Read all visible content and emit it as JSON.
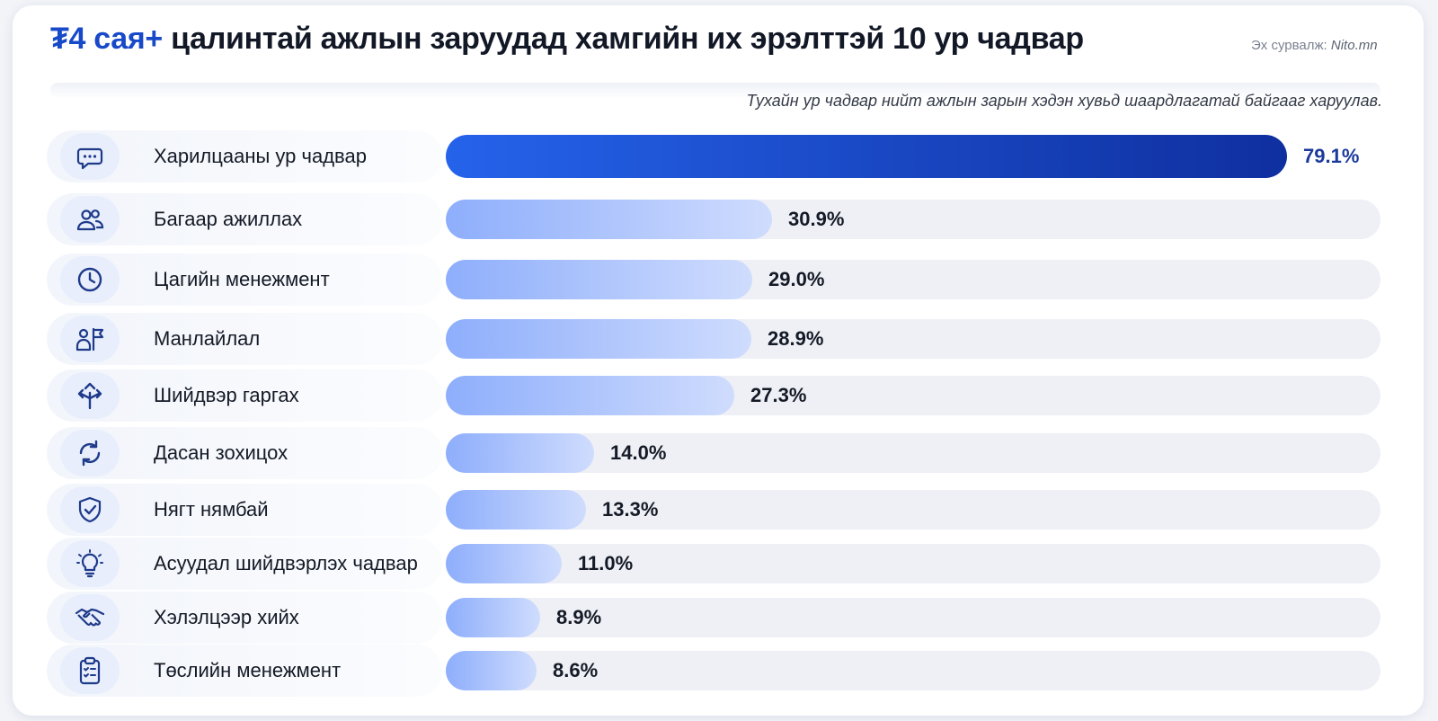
{
  "header": {
    "title_highlight": "₮4 сая+",
    "title_rest": " цалинтай ажлын заруудад хамгийн их эрэлттэй 10 ур чадвар",
    "source_label": "Эх сурвалж: ",
    "source_name": "Nito.mn",
    "subtitle": "Тухайн ур чадвар нийт ажлын зарын хэдэн хувьд шаардлагатай байгааг харуулав."
  },
  "colors": {
    "accent": "#1749c9",
    "top_bar_start": "#2563eb",
    "top_bar_end": "#0f2f9f",
    "bar_start": "#8eaefc",
    "bar_end": "#cfdcfd",
    "track": "#eef0f5",
    "icon_bg": "#e8eefb",
    "icon_stroke": "#1e3a8a"
  },
  "chart_data": {
    "type": "bar",
    "orientation": "horizontal",
    "unit": "%",
    "xlim": [
      0,
      100
    ],
    "categories": [
      "Харилцааны ур чадвар",
      "Багаар ажиллах",
      "Цагийн менежмент",
      "Манлайлал",
      "Шийдвэр гаргах",
      "Дасан зохицох",
      "Нягт нямбай",
      "Асуудал шийдвэрлэх чадвар",
      "Хэлэлцээр хийх",
      "Төслийн менежмент"
    ],
    "values": [
      79.1,
      30.9,
      29.0,
      28.9,
      27.3,
      14.0,
      13.3,
      11.0,
      8.9,
      8.6
    ],
    "value_labels": [
      "79.1%",
      "30.9%",
      "29.0%",
      "28.9%",
      "27.3%",
      "14.0%",
      "13.3%",
      "11.0%",
      "8.9%",
      "8.6%"
    ],
    "icons": [
      "chat-bubble-icon",
      "team-icon",
      "clock-icon",
      "leader-flag-icon",
      "decision-arrows-icon",
      "refresh-cycle-icon",
      "shield-check-icon",
      "lightbulb-icon",
      "handshake-icon",
      "clipboard-list-icon"
    ],
    "grid": false,
    "legend": "none"
  }
}
